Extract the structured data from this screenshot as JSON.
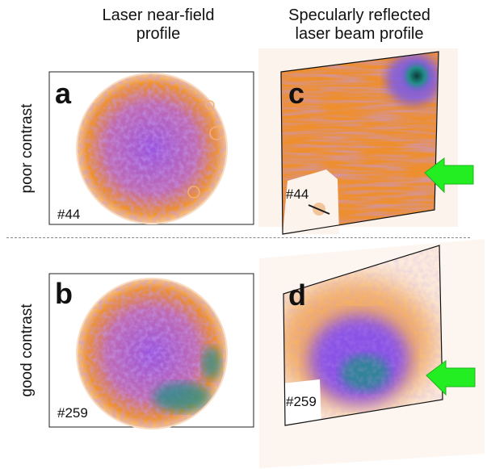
{
  "column_headers": {
    "left": [
      "Laser near-field",
      "profile"
    ],
    "right": [
      "Specularly reflected",
      "laser beam profile"
    ]
  },
  "row_labels": {
    "top": "poor contrast",
    "bottom": "good contrast"
  },
  "panels": {
    "a": {
      "letter": "a",
      "shot": "#44"
    },
    "b": {
      "letter": "b",
      "shot": "#259"
    },
    "c": {
      "letter": "c",
      "shot": "#44"
    },
    "d": {
      "letter": "d",
      "shot": "#259"
    }
  },
  "colors": {
    "orange": "#f0922a",
    "purple": "#8a52e6",
    "teal": "#1f8f86",
    "dark": "#0a2a2a",
    "arrow": "#22ee22"
  }
}
